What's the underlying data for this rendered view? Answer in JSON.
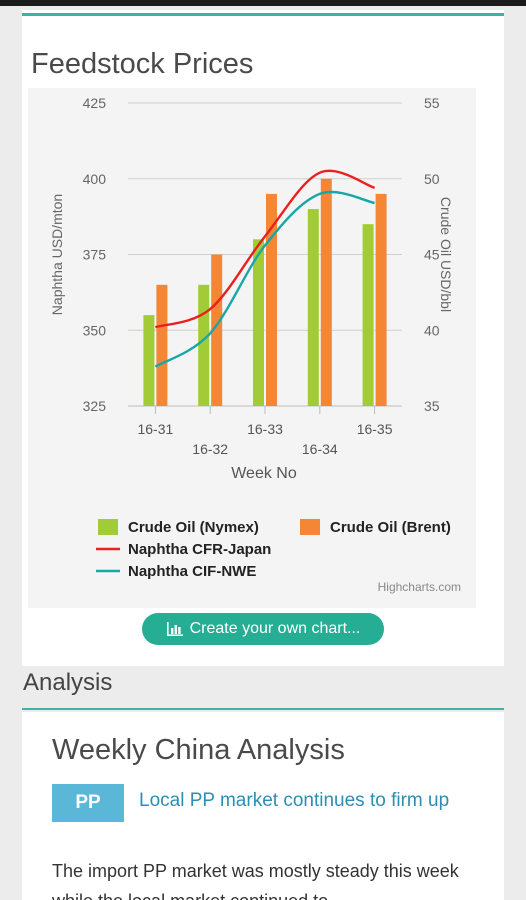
{
  "feedstock": {
    "title": "Feedstock Prices",
    "create_button": "Create your own chart...",
    "create_button_icon": "bar-chart-icon"
  },
  "chart_data": {
    "type": "bar",
    "categories": [
      "16-31",
      "16-32",
      "16-33",
      "16-34",
      "16-35"
    ],
    "xlabel": "Week No",
    "ylabel": "Naphtha USD/mton",
    "y2label": "Crude Oil USD/bbl",
    "ylim": [
      325,
      425
    ],
    "yticks": [
      325,
      350,
      375,
      400,
      425
    ],
    "y2lim": [
      35,
      55
    ],
    "y2ticks": [
      35,
      40,
      45,
      50,
      55
    ],
    "grid": true,
    "legend_position": "bottom",
    "credit": "Highcharts.com",
    "series": [
      {
        "name": "Crude Oil (Nymex)",
        "kind": "bar",
        "axis": "right",
        "color": "#a2cc37",
        "values": [
          41,
          43,
          46,
          48,
          47
        ]
      },
      {
        "name": "Crude Oil (Brent)",
        "kind": "bar",
        "axis": "right",
        "color": "#f58634",
        "values": [
          43,
          45,
          49,
          50,
          49
        ]
      },
      {
        "name": "Naphtha CFR-Japan",
        "kind": "line",
        "axis": "left",
        "color": "#e8201f",
        "values": [
          351,
          357,
          381,
          402,
          397
        ]
      },
      {
        "name": "Naphtha CIF-NWE",
        "kind": "line",
        "axis": "left",
        "color": "#1aa6a6",
        "values": [
          338,
          349,
          378,
          395,
          392
        ]
      }
    ]
  },
  "analysis": {
    "header": "Analysis",
    "title": "Weekly China Analysis",
    "tag": "PP",
    "headline": "Local PP market continues to firm up",
    "body": "The import PP market was mostly steady this week while the local market continued to"
  }
}
